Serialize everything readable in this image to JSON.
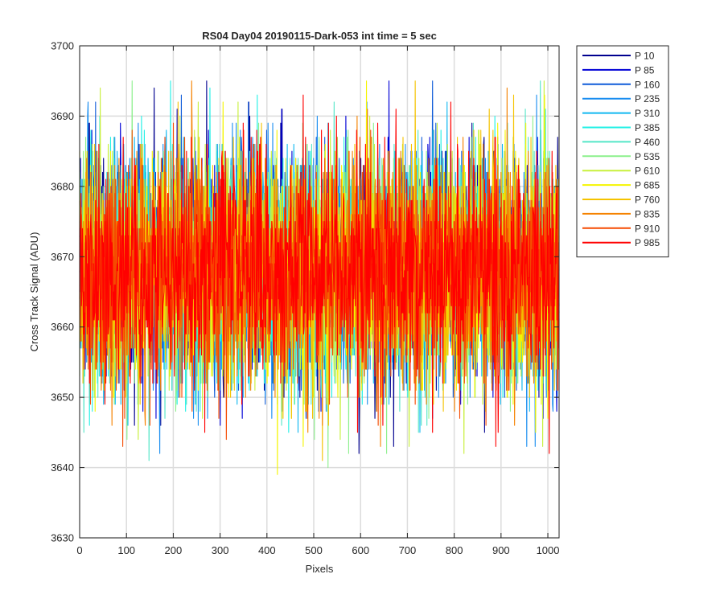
{
  "chart_data": {
    "type": "line",
    "title": "RS04 Day04 20190115-Dark-053 int time = 5 sec",
    "xlabel": "Pixels",
    "ylabel": "Cross Track Signal (ADU)",
    "xlim": [
      0,
      1024
    ],
    "ylim": [
      3630,
      3700
    ],
    "xticks": [
      0,
      100,
      200,
      300,
      400,
      500,
      600,
      700,
      800,
      900,
      1000
    ],
    "yticks": [
      3630,
      3640,
      3650,
      3660,
      3670,
      3680,
      3690,
      3700
    ],
    "grid": true,
    "legend_position": "outside-top-right",
    "data_summary": {
      "points_per_series": 1024,
      "mean": 3668,
      "typical_min": 3648,
      "typical_max": 3688,
      "observed_min": 3637,
      "observed_max": 3695
    },
    "series": [
      {
        "name": "P 10",
        "color": "#00008f"
      },
      {
        "name": "P 85",
        "color": "#0000d6"
      },
      {
        "name": "P 160",
        "color": "#0f5cd9"
      },
      {
        "name": "P 235",
        "color": "#1a8ef0"
      },
      {
        "name": "P 310",
        "color": "#10b8f0"
      },
      {
        "name": "P 385",
        "color": "#23f0e6"
      },
      {
        "name": "P 460",
        "color": "#55e6c8"
      },
      {
        "name": "P 535",
        "color": "#8cf08c"
      },
      {
        "name": "P 610",
        "color": "#c8f03c"
      },
      {
        "name": "P 685",
        "color": "#f5f500"
      },
      {
        "name": "P 760",
        "color": "#f5c300"
      },
      {
        "name": "P 835",
        "color": "#f58200"
      },
      {
        "name": "P 910",
        "color": "#f54a00"
      },
      {
        "name": "P 985",
        "color": "#ff0000"
      }
    ]
  }
}
